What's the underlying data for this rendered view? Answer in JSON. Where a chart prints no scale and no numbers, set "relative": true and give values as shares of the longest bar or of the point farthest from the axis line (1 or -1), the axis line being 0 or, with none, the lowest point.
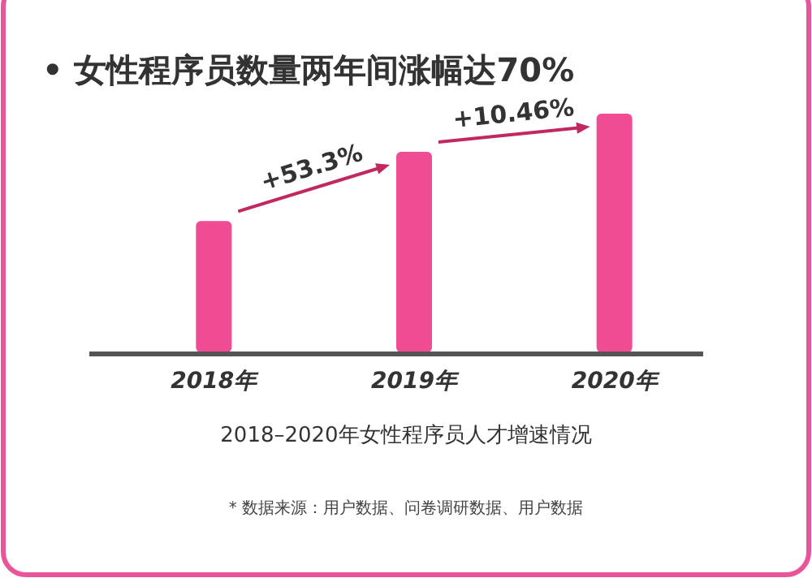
{
  "chart_data": {
    "type": "bar",
    "title": "• 女性程序员数量两年间涨幅达70%",
    "xlabel": "2018–2020年女性程序员人才增速情况",
    "categories": [
      "2018年",
      "2019年",
      "2020年"
    ],
    "values": [
      0.55,
      0.84,
      1
    ],
    "color": "#f04c94",
    "relative": true,
    "annotations": [
      "+53.3%",
      "+10.46%",
      "* 数据来源：用户数据、问卷调研数据、用户数据"
    ]
  }
}
